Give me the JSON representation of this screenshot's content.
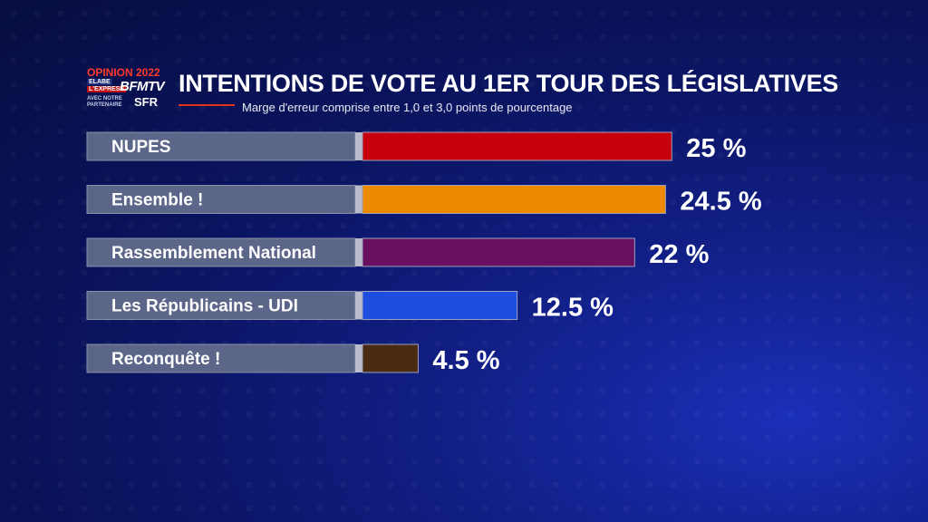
{
  "logo": {
    "opinion": "OPINION 2022",
    "elabe": "ELABE",
    "express": "L'EXPRESS",
    "bfmtv": "BFMTV",
    "partner": "AVEC NOTRE PARTENAIRE",
    "sfr": "SFR"
  },
  "header": {
    "title": "INTENTIONS DE VOTE AU 1ER TOUR DES LÉGISLATIVES",
    "subtitle": "Marge d'erreur comprise entre 1,0 et 3,0 points de pourcentage"
  },
  "colors": {
    "label_bar": "#5b6688",
    "NUPES": "#c8000e",
    "Ensemble !": "#ec8a00",
    "Rassemblement National": "#6a1060",
    "Les Républicains - UDI": "#1e4ee0",
    "Reconquête !": "#4a2a12"
  },
  "chart_data": {
    "type": "bar",
    "orientation": "horizontal",
    "title": "INTENTIONS DE VOTE AU 1ER TOUR DES LÉGISLATIVES",
    "subtitle": "Marge d'erreur comprise entre 1,0 et 3,0 points de pourcentage",
    "categories": [
      "NUPES",
      "Ensemble !",
      "Rassemblement National",
      "Les Républicains - UDI",
      "Reconquête !"
    ],
    "values": [
      25,
      24.5,
      22,
      12.5,
      4.5
    ],
    "value_labels": [
      "25 %",
      "24.5 %",
      "22 %",
      "12.5 %",
      "4.5 %"
    ],
    "unit": "%",
    "grid": false,
    "legend": "none"
  }
}
